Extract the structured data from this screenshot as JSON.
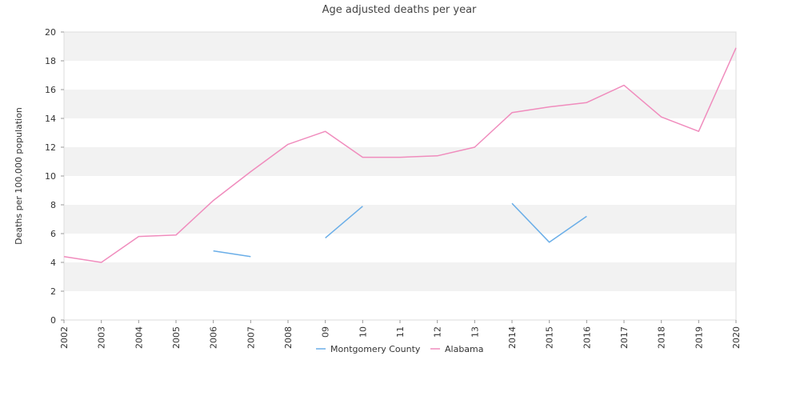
{
  "chart_data": {
    "type": "line",
    "title": "Age adjusted deaths per year",
    "xlabel": "",
    "ylabel": "Deaths per 100,000 population",
    "x": [
      "2002",
      "2003",
      "2004",
      "2005",
      "2006",
      "2007",
      "2008",
      "09",
      "10",
      "11",
      "12",
      "13",
      "2014",
      "2015",
      "2016",
      "2017",
      "2018",
      "2019",
      "2020"
    ],
    "ylim": [
      0,
      20
    ],
    "yticks": [
      0,
      2,
      4,
      6,
      8,
      10,
      12,
      14,
      16,
      18,
      20
    ],
    "grid": "horizontal alternating bands",
    "legend_position": "bottom-center",
    "series": [
      {
        "name": "Montgomery County",
        "color": "#6aaee8",
        "values": [
          null,
          null,
          null,
          null,
          4.8,
          4.4,
          null,
          5.7,
          7.9,
          null,
          null,
          null,
          8.1,
          5.4,
          7.2,
          null,
          null,
          null,
          null
        ]
      },
      {
        "name": "Alabama",
        "color": "#f08cbd",
        "values": [
          4.4,
          4.0,
          5.8,
          5.9,
          8.3,
          10.3,
          12.2,
          13.1,
          11.3,
          11.3,
          11.4,
          12.0,
          14.4,
          14.8,
          15.1,
          16.3,
          14.1,
          13.1,
          18.9
        ]
      }
    ]
  }
}
